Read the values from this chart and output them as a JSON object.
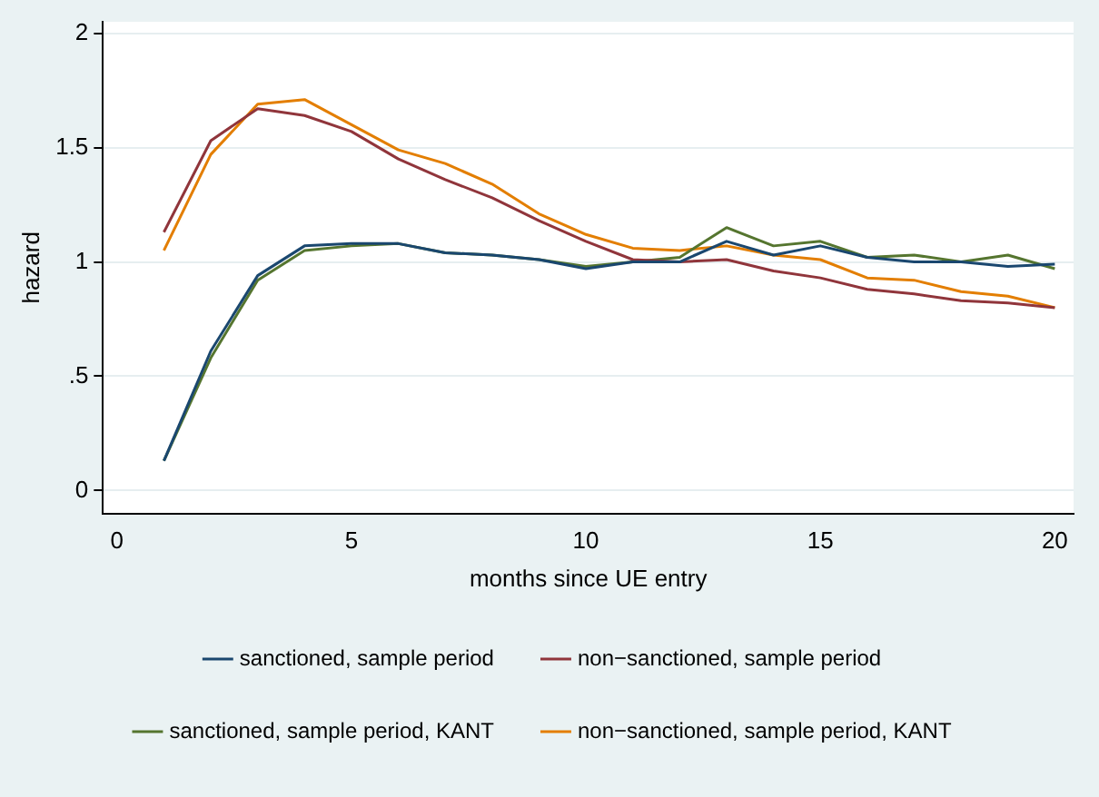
{
  "chart_data": {
    "type": "line",
    "xlabel": "months since UE entry",
    "ylabel": "hazard",
    "x": [
      1,
      2,
      3,
      4,
      5,
      6,
      7,
      8,
      9,
      10,
      11,
      12,
      13,
      14,
      15,
      16,
      17,
      18,
      19,
      20
    ],
    "xlim": [
      -0.3,
      20.4
    ],
    "xticks": [
      0,
      5,
      10,
      15,
      20
    ],
    "ylim": [
      -0.1,
      2.05
    ],
    "yticks": [
      {
        "value": 0,
        "label": "0"
      },
      {
        "value": 0.5,
        "label": ".5"
      },
      {
        "value": 1,
        "label": "1"
      },
      {
        "value": 1.5,
        "label": "1.5"
      },
      {
        "value": 2,
        "label": "2"
      }
    ],
    "grid": "y",
    "legend": "bottom",
    "marker": "none",
    "line_style": "solid",
    "series": [
      {
        "name": "sanctioned, sample period",
        "color": "#1a476f",
        "values": [
          0.13,
          0.61,
          0.94,
          1.07,
          1.08,
          1.08,
          1.04,
          1.03,
          1.01,
          0.97,
          1.0,
          1.0,
          1.09,
          1.03,
          1.07,
          1.02,
          1.0,
          1.0,
          0.98,
          0.99
        ]
      },
      {
        "name": "non−sanctioned, sample period",
        "color": "#90353b",
        "values": [
          1.13,
          1.53,
          1.67,
          1.64,
          1.57,
          1.45,
          1.36,
          1.28,
          1.18,
          1.09,
          1.01,
          1.0,
          1.01,
          0.96,
          0.93,
          0.88,
          0.86,
          0.83,
          0.82,
          0.8
        ]
      },
      {
        "name": "sanctioned, sample period, KANT",
        "color": "#55752f",
        "values": [
          0.13,
          0.58,
          0.92,
          1.05,
          1.07,
          1.08,
          1.04,
          1.03,
          1.01,
          0.98,
          1.0,
          1.02,
          1.15,
          1.07,
          1.09,
          1.02,
          1.03,
          1.0,
          1.03,
          0.97
        ]
      },
      {
        "name": "non−sanctioned, sample period, KANT",
        "color": "#e37e00",
        "values": [
          1.05,
          1.47,
          1.69,
          1.71,
          1.6,
          1.49,
          1.43,
          1.34,
          1.21,
          1.12,
          1.06,
          1.05,
          1.07,
          1.03,
          1.01,
          0.93,
          0.92,
          0.87,
          0.85,
          0.8
        ]
      }
    ]
  }
}
